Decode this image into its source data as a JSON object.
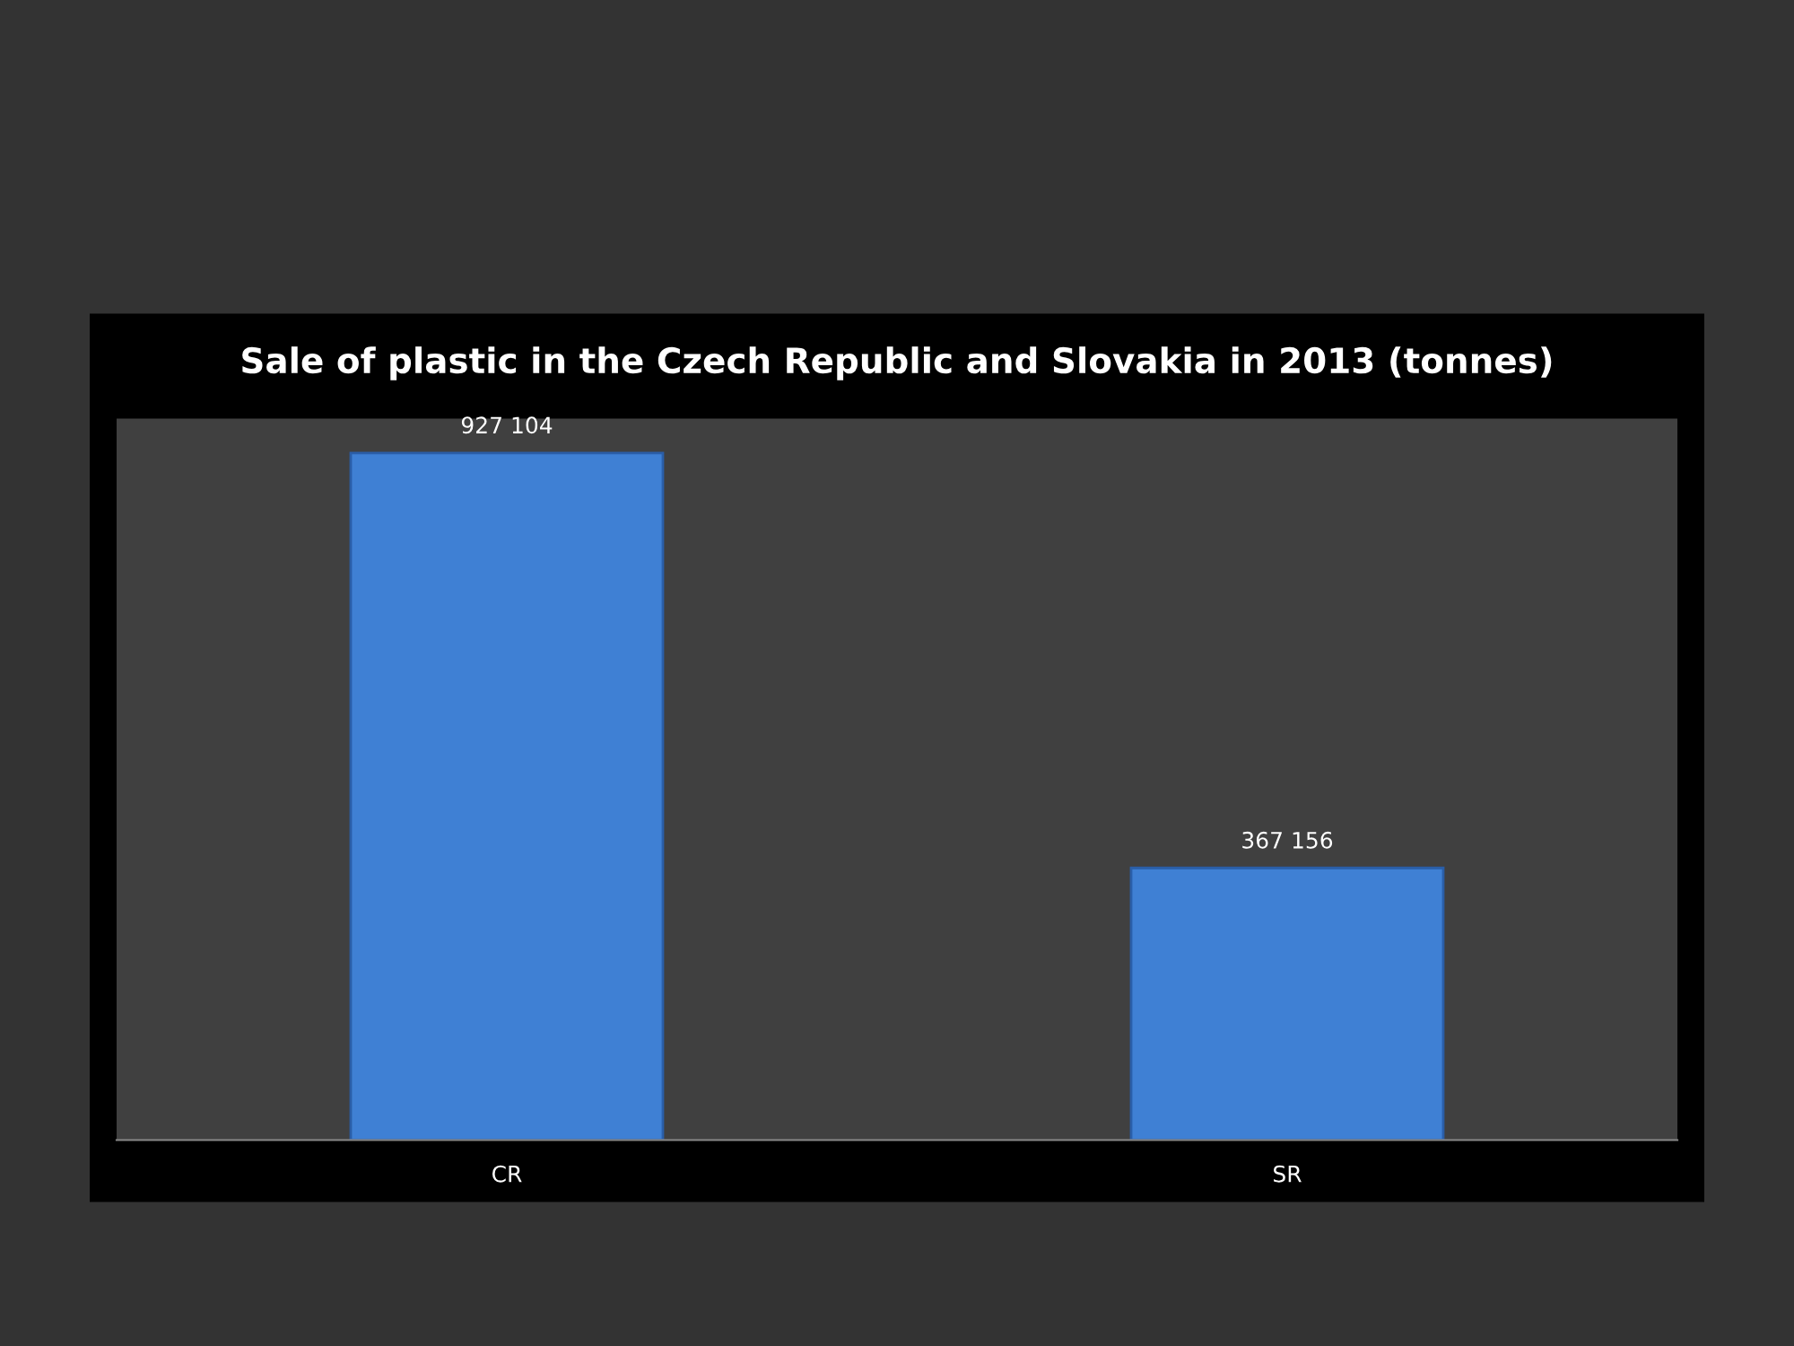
{
  "chart_data": {
    "type": "bar",
    "title": "Sale of plastic in the Czech Republic and Slovakia in 2013 (tonnes)",
    "categories": [
      "CR",
      "SR"
    ],
    "values": [
      927104,
      367156
    ],
    "value_labels": [
      "927 104",
      "367 156"
    ],
    "color": "#3f80d4",
    "tick_labels": "x",
    "grid": false
  }
}
